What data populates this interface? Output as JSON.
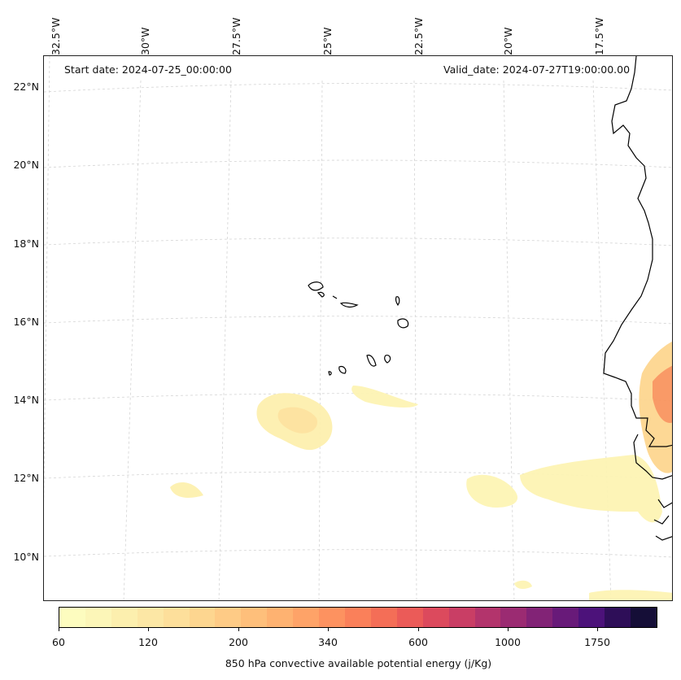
{
  "header": {
    "start_date": "Start date: 2024-07-25_00:00:00",
    "valid_date": "Valid_date: 2024-07-27T19:00:00.00"
  },
  "axes": {
    "lon_labels": [
      "32.5°W",
      "30°W",
      "27.5°W",
      "25°W",
      "22.5°W",
      "20°W",
      "17.5°W"
    ],
    "lat_labels": [
      "22°N",
      "20°N",
      "18°N",
      "16°N",
      "14°N",
      "12°N",
      "10°N"
    ]
  },
  "colorbar": {
    "title": "850 hPa convective available potential energy (j/Kg)",
    "tick_labels": [
      "60",
      "120",
      "200",
      "340",
      "600",
      "1000",
      "1750"
    ],
    "colors": [
      "#fdfcbf",
      "#fcf6b8",
      "#fcefae",
      "#fce7a5",
      "#fddf9b",
      "#fdd690",
      "#fecb86",
      "#febf7b",
      "#feb271",
      "#fea368",
      "#fd9260",
      "#fa805a",
      "#f46e57",
      "#eb5b58",
      "#dc4a5d",
      "#c93e65",
      "#b3346c",
      "#9b2b72",
      "#822376",
      "#681a79",
      "#4c127a",
      "#2e0e58",
      "#150e37"
    ]
  },
  "style": {
    "coast_color": "#000000",
    "grid_color": "#cccccc"
  }
}
